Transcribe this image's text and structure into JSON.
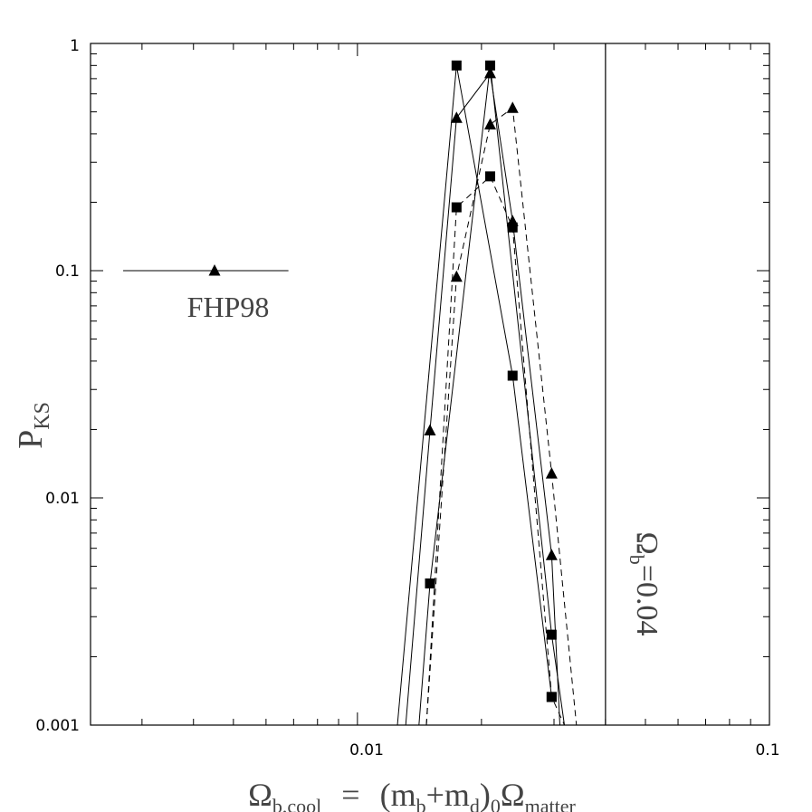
{
  "chart_data": {
    "type": "scatter",
    "title": "",
    "xlabel": {
      "main": "Ω",
      "main_sub": "b,cool",
      "eq": "=",
      "paren_open": "(m",
      "sub_b": "b",
      "plus": "+m",
      "sub_d": "d",
      "paren_close": ")",
      "sub_0": "0",
      "omega2": "Ω",
      "sub_matter": "matter"
    },
    "ylabel": {
      "main": "P",
      "sub": "KS"
    },
    "x_scale": "log",
    "y_scale": "log",
    "xlim": [
      0.00225,
      0.1
    ],
    "ylim": [
      0.001,
      1
    ],
    "x_ticklabels": [
      {
        "value": 0.01,
        "label": "0.01"
      },
      {
        "value": 0.1,
        "label": "0.1"
      }
    ],
    "y_ticklabels": [
      {
        "value": 0.001,
        "label": "0.001"
      },
      {
        "value": 0.01,
        "label": "0.01"
      },
      {
        "value": 0.1,
        "label": "0.1"
      },
      {
        "value": 1,
        "label": "1"
      }
    ],
    "grid": false,
    "series": [
      {
        "marker": "square",
        "line": "solid",
        "x": [
          0.0125,
          0.0174,
          0.0238,
          0.0296
        ],
        "y": [
          0.001,
          0.8,
          0.0345,
          0.00133
        ]
      },
      {
        "marker": "square",
        "line": "solid",
        "x": [
          0.0141,
          0.015,
          0.021,
          0.0296,
          0.0318
        ],
        "y": [
          0.001,
          0.0042,
          0.8,
          0.0025,
          0.001
        ]
      },
      {
        "marker": "square",
        "line": "dashed",
        "x": [
          0.0147,
          0.0174,
          0.021,
          0.0238,
          0.0296,
          0.0318
        ],
        "y": [
          0.001,
          0.19,
          0.26,
          0.155,
          0.00133,
          0.001
        ]
      },
      {
        "marker": "triangle",
        "line": "solid",
        "x": [
          0.0131,
          0.015,
          0.0174,
          0.021,
          0.0238,
          0.0296,
          0.031
        ],
        "y": [
          0.001,
          0.0198,
          0.47,
          0.74,
          0.165,
          0.0056,
          0.001
        ]
      },
      {
        "marker": "triangle",
        "line": "dashed",
        "x": [
          0.0147,
          0.0174,
          0.021,
          0.0238,
          0.0296,
          0.034
        ],
        "y": [
          0.001,
          0.094,
          0.44,
          0.52,
          0.0128,
          0.001
        ]
      }
    ],
    "reference_line": {
      "x": 0.04,
      "label": "Ω",
      "label_sub": "b",
      "label_rest": "=0.04"
    },
    "annotation": {
      "label": "FHP98",
      "x": 0.0045,
      "y": 0.1,
      "x_err_low": 0.0027,
      "x_err_high": 0.0068
    }
  }
}
